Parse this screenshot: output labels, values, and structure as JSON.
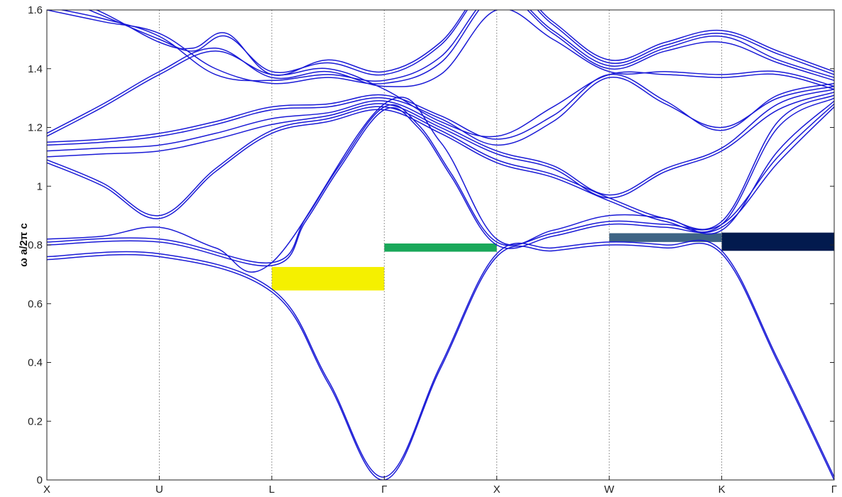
{
  "chart_data": {
    "type": "line",
    "title": "",
    "xlabel": "",
    "ylabel": "ω a/2π c",
    "ylim": [
      0,
      1.6
    ],
    "xlim": [
      0,
      7
    ],
    "grid": "vertical dotted lines at symmetry points",
    "legend": "none",
    "line_color": "#1a1ad6",
    "y_ticks": [
      {
        "value": 0,
        "label": "0"
      },
      {
        "value": 0.2,
        "label": "0.2"
      },
      {
        "value": 0.4,
        "label": "0.4"
      },
      {
        "value": 0.6,
        "label": "0.6"
      },
      {
        "value": 0.8,
        "label": "0.8"
      },
      {
        "value": 1.0,
        "label": "1"
      },
      {
        "value": 1.2,
        "label": "1.2"
      },
      {
        "value": 1.4,
        "label": "1.4"
      },
      {
        "value": 1.6,
        "label": "1.6"
      }
    ],
    "x_ticks": [
      {
        "value": 0,
        "label": "X"
      },
      {
        "value": 1,
        "label": "U"
      },
      {
        "value": 2,
        "label": "L"
      },
      {
        "value": 3,
        "label": "Γ"
      },
      {
        "value": 4,
        "label": "X"
      },
      {
        "value": 5,
        "label": "W"
      },
      {
        "value": 6,
        "label": "K"
      },
      {
        "value": 7,
        "label": "Γ"
      }
    ],
    "gaps": [
      {
        "x_start": 2.0,
        "x_end": 3.0,
        "y_low": 0.645,
        "y_high": 0.725,
        "color": "#f5f000"
      },
      {
        "x_start": 3.0,
        "x_end": 4.0,
        "y_low": 0.777,
        "y_high": 0.805,
        "color": "#1aa85a"
      },
      {
        "x_start": 5.0,
        "x_end": 6.0,
        "y_low": 0.81,
        "y_high": 0.84,
        "color": "#3e6485"
      },
      {
        "x_start": 6.0,
        "x_end": 7.0,
        "y_low": 0.78,
        "y_high": 0.842,
        "color": "#021a4e"
      }
    ],
    "series": [
      {
        "x": [
          0,
          1,
          2,
          2.5,
          3,
          3.5,
          4,
          4.5,
          5,
          5.5,
          6,
          6.5,
          7
        ],
        "y": [
          0.75,
          0.76,
          0.64,
          0.33,
          0.0,
          0.38,
          0.76,
          0.78,
          0.8,
          0.79,
          0.77,
          0.4,
          0.0
        ]
      },
      {
        "x": [
          0,
          1,
          2,
          2.5,
          3,
          3.5,
          4,
          4.5,
          5,
          5.5,
          6,
          6.5,
          7
        ],
        "y": [
          0.76,
          0.77,
          0.65,
          0.34,
          0.01,
          0.39,
          0.77,
          0.79,
          0.81,
          0.8,
          0.78,
          0.41,
          0.01
        ]
      },
      {
        "x": [
          0,
          1,
          2,
          2.3,
          2.6,
          3,
          3.3,
          3.6,
          4,
          4.5,
          5,
          5.5,
          6,
          6.5,
          7
        ],
        "y": [
          0.8,
          0.81,
          0.73,
          0.88,
          1.06,
          1.26,
          1.2,
          1.03,
          0.8,
          0.83,
          0.87,
          0.86,
          0.86,
          1.08,
          1.27
        ]
      },
      {
        "x": [
          0,
          1,
          2,
          2.3,
          2.6,
          3,
          3.3,
          3.6,
          4,
          4.5,
          5,
          5.5,
          6,
          6.5,
          7
        ],
        "y": [
          0.81,
          0.82,
          0.74,
          0.89,
          1.07,
          1.27,
          1.21,
          1.04,
          0.81,
          0.84,
          0.88,
          0.87,
          0.87,
          1.1,
          1.28
        ]
      },
      {
        "x": [
          0,
          0.5,
          1,
          1.5,
          2,
          3,
          3.5,
          4,
          4.5,
          5,
          5.5,
          6,
          6.5,
          7
        ],
        "y": [
          0.82,
          0.83,
          0.86,
          0.79,
          0.74,
          1.28,
          1.15,
          0.82,
          0.85,
          0.9,
          0.89,
          0.85,
          1.12,
          1.29
        ]
      },
      {
        "x": [
          0,
          0.5,
          1,
          1.5,
          2,
          2.5,
          3,
          3.5,
          4,
          4.5,
          5,
          5.5,
          6,
          6.5,
          7
        ],
        "y": [
          1.08,
          1.0,
          0.89,
          1.05,
          1.18,
          1.22,
          1.26,
          1.18,
          1.08,
          1.03,
          0.95,
          0.88,
          0.87,
          1.2,
          1.3
        ]
      },
      {
        "x": [
          0,
          0.5,
          1,
          1.5,
          2,
          2.5,
          3,
          3.5,
          4,
          4.5,
          5,
          5.5,
          6,
          6.5,
          7
        ],
        "y": [
          1.09,
          1.01,
          0.9,
          1.06,
          1.19,
          1.23,
          1.27,
          1.19,
          1.09,
          1.04,
          0.96,
          0.89,
          0.88,
          1.22,
          1.31
        ]
      },
      {
        "x": [
          0,
          0.5,
          1,
          1.5,
          2,
          2.5,
          3,
          3.5,
          4,
          4.5,
          5,
          5.5,
          6,
          6.5,
          7
        ],
        "y": [
          1.1,
          1.11,
          1.12,
          1.16,
          1.21,
          1.24,
          1.28,
          1.2,
          1.11,
          1.06,
          0.96,
          1.05,
          1.12,
          1.26,
          1.32
        ]
      },
      {
        "x": [
          0,
          0.5,
          1,
          1.5,
          2,
          2.5,
          3,
          3.5,
          4,
          4.5,
          5,
          5.5,
          6,
          6.5,
          7
        ],
        "y": [
          1.12,
          1.13,
          1.14,
          1.18,
          1.23,
          1.25,
          1.29,
          1.21,
          1.12,
          1.07,
          0.97,
          1.06,
          1.13,
          1.28,
          1.33
        ]
      },
      {
        "x": [
          0,
          0.5,
          1,
          1.5,
          2,
          2.5,
          3,
          3.5,
          4,
          4.5,
          5,
          5.5,
          6,
          6.5,
          7
        ],
        "y": [
          1.14,
          1.15,
          1.17,
          1.21,
          1.26,
          1.27,
          1.3,
          1.23,
          1.14,
          1.22,
          1.37,
          1.28,
          1.2,
          1.3,
          1.34
        ]
      },
      {
        "x": [
          0,
          0.5,
          1,
          1.5,
          2,
          2.5,
          3,
          3.5,
          4,
          4.5,
          5,
          5.5,
          6,
          6.5,
          7
        ],
        "y": [
          1.15,
          1.16,
          1.18,
          1.22,
          1.27,
          1.28,
          1.31,
          1.24,
          1.16,
          1.24,
          1.38,
          1.29,
          1.19,
          1.31,
          1.35
        ]
      },
      {
        "x": [
          0,
          0.5,
          1,
          1.5,
          2,
          2.5,
          3,
          3.5,
          4,
          4.5,
          5,
          5.5,
          6,
          6.5,
          7
        ],
        "y": [
          1.17,
          1.27,
          1.38,
          1.46,
          1.38,
          1.4,
          1.33,
          1.22,
          1.17,
          1.27,
          1.38,
          1.38,
          1.37,
          1.38,
          1.33
        ]
      },
      {
        "x": [
          0,
          0.5,
          1,
          1.5,
          2,
          2.5,
          3,
          3.5,
          4,
          4.5,
          5,
          5.5,
          6,
          6.5,
          7
        ],
        "y": [
          1.18,
          1.28,
          1.39,
          1.47,
          1.37,
          1.39,
          1.34,
          1.38,
          1.6,
          1.5,
          1.39,
          1.39,
          1.38,
          1.39,
          1.34
        ]
      },
      {
        "x": [
          0,
          0.5,
          1,
          1.5,
          2,
          2.5,
          3,
          3.5,
          4,
          4.5,
          5,
          5.5,
          6,
          6.5,
          7
        ],
        "y": [
          1.6,
          1.56,
          1.52,
          1.4,
          1.35,
          1.37,
          1.35,
          1.42,
          1.65,
          1.52,
          1.4,
          1.46,
          1.49,
          1.42,
          1.36
        ]
      },
      {
        "x": [
          0,
          0.5,
          1,
          1.5,
          2,
          2.5,
          3,
          3.5,
          4,
          4.5,
          5,
          5.5,
          6,
          6.5,
          7
        ],
        "y": [
          1.61,
          1.57,
          1.51,
          1.38,
          1.36,
          1.38,
          1.36,
          1.44,
          1.66,
          1.53,
          1.41,
          1.47,
          1.51,
          1.43,
          1.37
        ]
      },
      {
        "x": [
          0,
          0.5,
          1,
          1.3,
          1.6,
          2,
          2.5,
          3,
          3.5,
          4,
          4.5,
          5,
          5.5,
          6,
          6.5,
          7
        ],
        "y": [
          1.66,
          1.58,
          1.5,
          1.46,
          1.51,
          1.39,
          1.42,
          1.38,
          1.48,
          1.7,
          1.55,
          1.42,
          1.48,
          1.52,
          1.45,
          1.38
        ]
      },
      {
        "x": [
          0,
          0.5,
          1,
          1.3,
          1.6,
          2,
          2.5,
          3,
          3.5,
          4,
          4.5,
          5,
          5.5,
          6,
          6.5,
          7
        ],
        "y": [
          1.67,
          1.59,
          1.49,
          1.47,
          1.52,
          1.38,
          1.43,
          1.39,
          1.49,
          1.71,
          1.56,
          1.43,
          1.49,
          1.53,
          1.46,
          1.39
        ]
      }
    ]
  }
}
